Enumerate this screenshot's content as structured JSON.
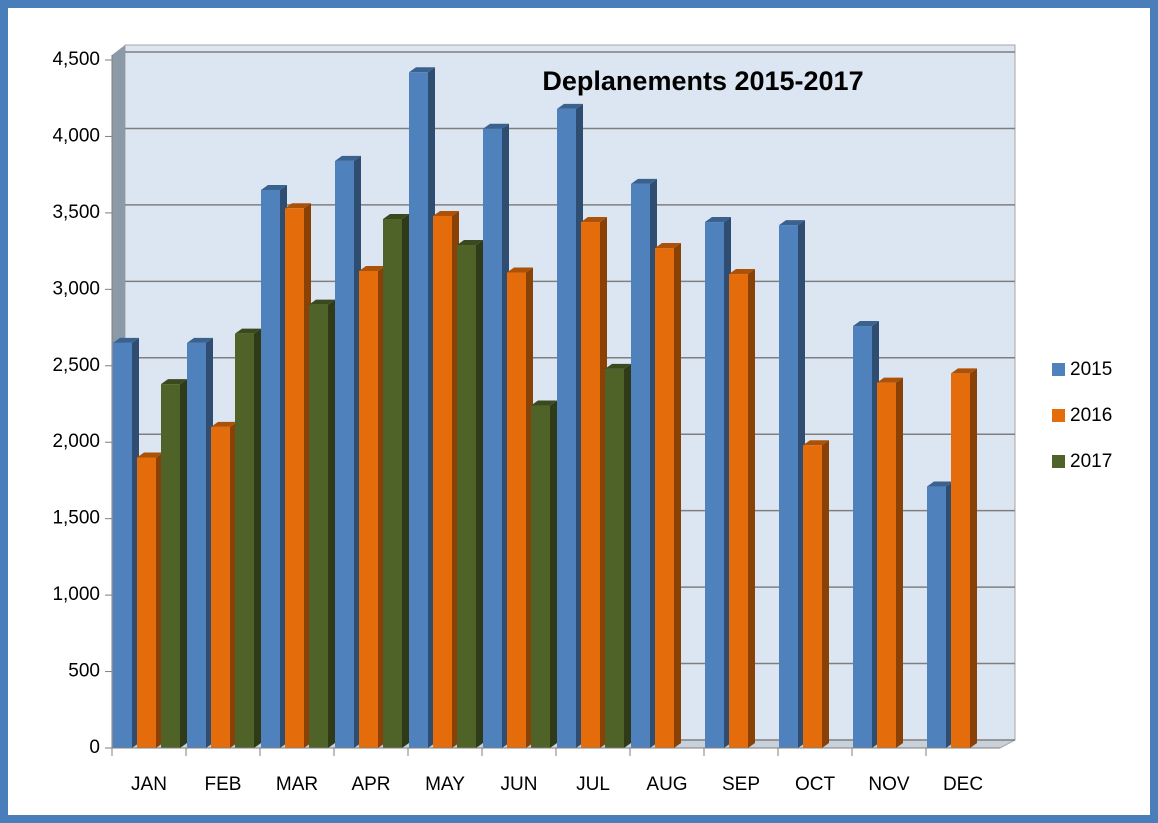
{
  "chart_data": {
    "type": "bar3d",
    "title": "Deplanements  2015-2017",
    "categories": [
      "JAN",
      "FEB",
      "MAR",
      "APR",
      "MAY",
      "JUN",
      "JUL",
      "AUG",
      "SEP",
      "OCT",
      "NOV",
      "DEC"
    ],
    "series": [
      {
        "name": "2015",
        "color": "#4f81bd",
        "values": [
          2650,
          2650,
          3650,
          3840,
          4420,
          4050,
          4180,
          3690,
          3440,
          3420,
          2760,
          1710
        ]
      },
      {
        "name": "2016",
        "color": "#e46c0a",
        "values": [
          1900,
          2100,
          3530,
          3120,
          3480,
          3110,
          3440,
          3270,
          3100,
          1980,
          2390,
          2450
        ]
      },
      {
        "name": "2017",
        "color": "#4f6228",
        "values": [
          2380,
          2710,
          2900,
          3460,
          3290,
          2240,
          2480,
          null,
          null,
          null,
          null,
          null
        ]
      }
    ],
    "ylim": [
      0,
      4500
    ],
    "yticks": [
      0,
      {
        "value": 500,
        "label": "500"
      },
      {
        "value": 1000,
        "label": "1,000"
      },
      {
        "value": 1500,
        "label": "1,500"
      },
      {
        "value": 2000,
        "label": "2,000"
      },
      {
        "value": 2500,
        "label": "2,500"
      },
      {
        "value": 3000,
        "label": "3,000"
      },
      {
        "value": 3500,
        "label": "3,500"
      },
      {
        "value": 4000,
        "label": "4,000"
      },
      {
        "value": 4500,
        "label": "4,500"
      }
    ],
    "grid": true,
    "legend": "right"
  }
}
